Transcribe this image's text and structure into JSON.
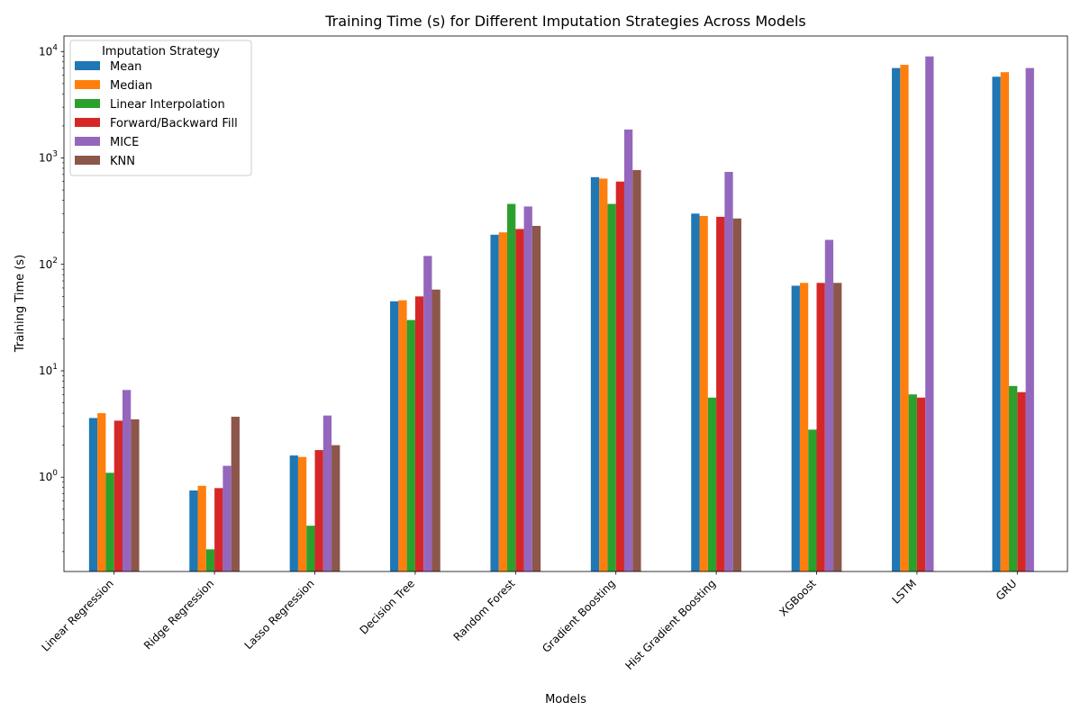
{
  "chart_data": {
    "type": "bar",
    "title": "Training Time (s) for Different Imputation Strategies Across Models",
    "xlabel": "Models",
    "ylabel": "Training Time (s)",
    "yscale": "log",
    "ylim": [
      0.13,
      14000
    ],
    "ytick_values": [
      1,
      10,
      100,
      1000,
      10000
    ],
    "ytick_labels": [
      {
        "base": "10",
        "exp": "0"
      },
      {
        "base": "10",
        "exp": "1"
      },
      {
        "base": "10",
        "exp": "2"
      },
      {
        "base": "10",
        "exp": "3"
      },
      {
        "base": "10",
        "exp": "4"
      }
    ],
    "grid": false,
    "legend_title": "Imputation Strategy",
    "legend_position": "top-left",
    "categories": [
      "Linear Regression",
      "Ridge Regression",
      "Lasso Regression",
      "Decision Tree",
      "Random Forest",
      "Gradient Boosting",
      "Hist Gradient Boosting",
      "XGBoost",
      "LSTM",
      "GRU"
    ],
    "series": [
      {
        "name": "Mean",
        "color": "#1f77b4",
        "values": [
          3.6,
          0.75,
          1.6,
          45,
          190,
          660,
          300,
          63,
          7000,
          5800
        ]
      },
      {
        "name": "Median",
        "color": "#ff7f0e",
        "values": [
          4.0,
          0.83,
          1.55,
          46,
          200,
          640,
          285,
          67,
          7500,
          6400
        ]
      },
      {
        "name": "Linear Interpolation",
        "color": "#2ca02c",
        "values": [
          1.1,
          0.21,
          0.35,
          30,
          370,
          370,
          5.6,
          2.8,
          6.0,
          7.2
        ]
      },
      {
        "name": "Forward/Backward Fill",
        "color": "#d62728",
        "values": [
          3.4,
          0.79,
          1.8,
          50,
          215,
          600,
          280,
          67,
          5.6,
          6.3
        ]
      },
      {
        "name": "MICE",
        "color": "#9467bd",
        "values": [
          6.6,
          1.28,
          3.8,
          120,
          350,
          1850,
          740,
          170,
          9000,
          7000
        ]
      },
      {
        "name": "KNN",
        "color": "#8c564b",
        "values": [
          3.5,
          3.7,
          2.0,
          58,
          230,
          770,
          270,
          67,
          null,
          null
        ]
      }
    ]
  }
}
